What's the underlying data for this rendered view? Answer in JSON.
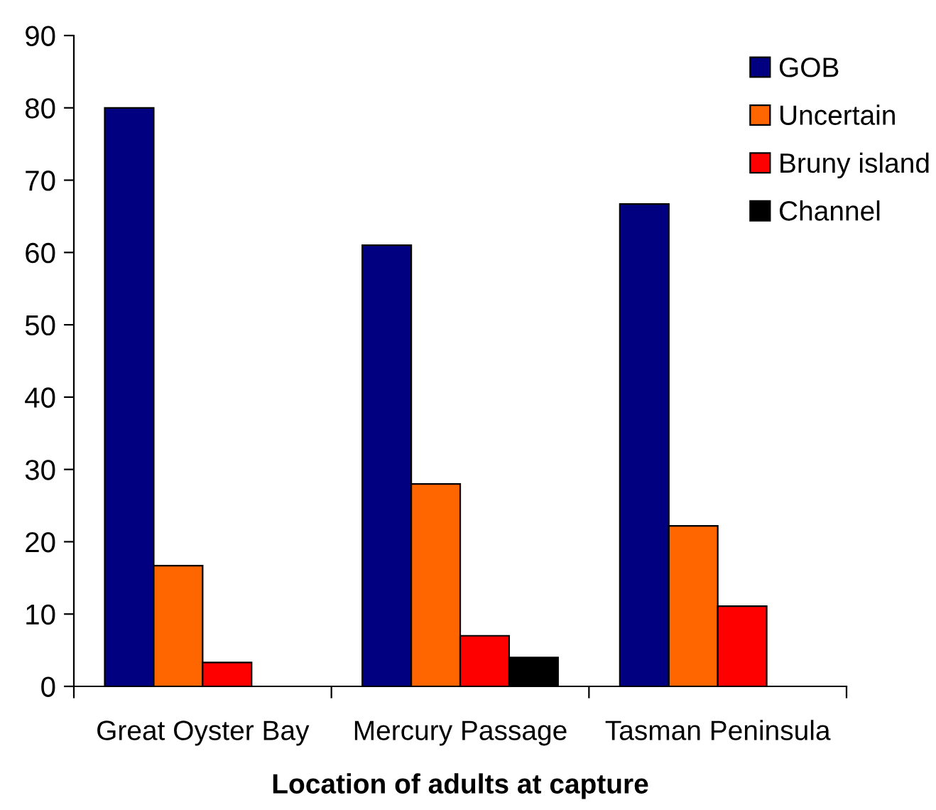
{
  "chart_data": {
    "type": "bar",
    "xlabel": "Location of adults at capture",
    "categories": [
      "Great Oyster Bay",
      "Mercury Passage",
      "Tasman Peninsula"
    ],
    "series": [
      {
        "name": "GOB",
        "color": "#000080",
        "values": [
          80,
          61,
          66.7
        ]
      },
      {
        "name": "Uncertain",
        "color": "#ff6600",
        "values": [
          16.7,
          28,
          22.2
        ]
      },
      {
        "name": "Bruny island",
        "color": "#ff0000",
        "values": [
          3.3,
          7,
          11.1
        ]
      },
      {
        "name": "Channel",
        "color": "#000000",
        "values": [
          null,
          4,
          null
        ]
      }
    ],
    "ylim": [
      0,
      90
    ],
    "yticks": [
      0,
      10,
      20,
      30,
      40,
      50,
      60,
      70,
      80,
      90
    ],
    "grid": false,
    "legend": "top right"
  }
}
